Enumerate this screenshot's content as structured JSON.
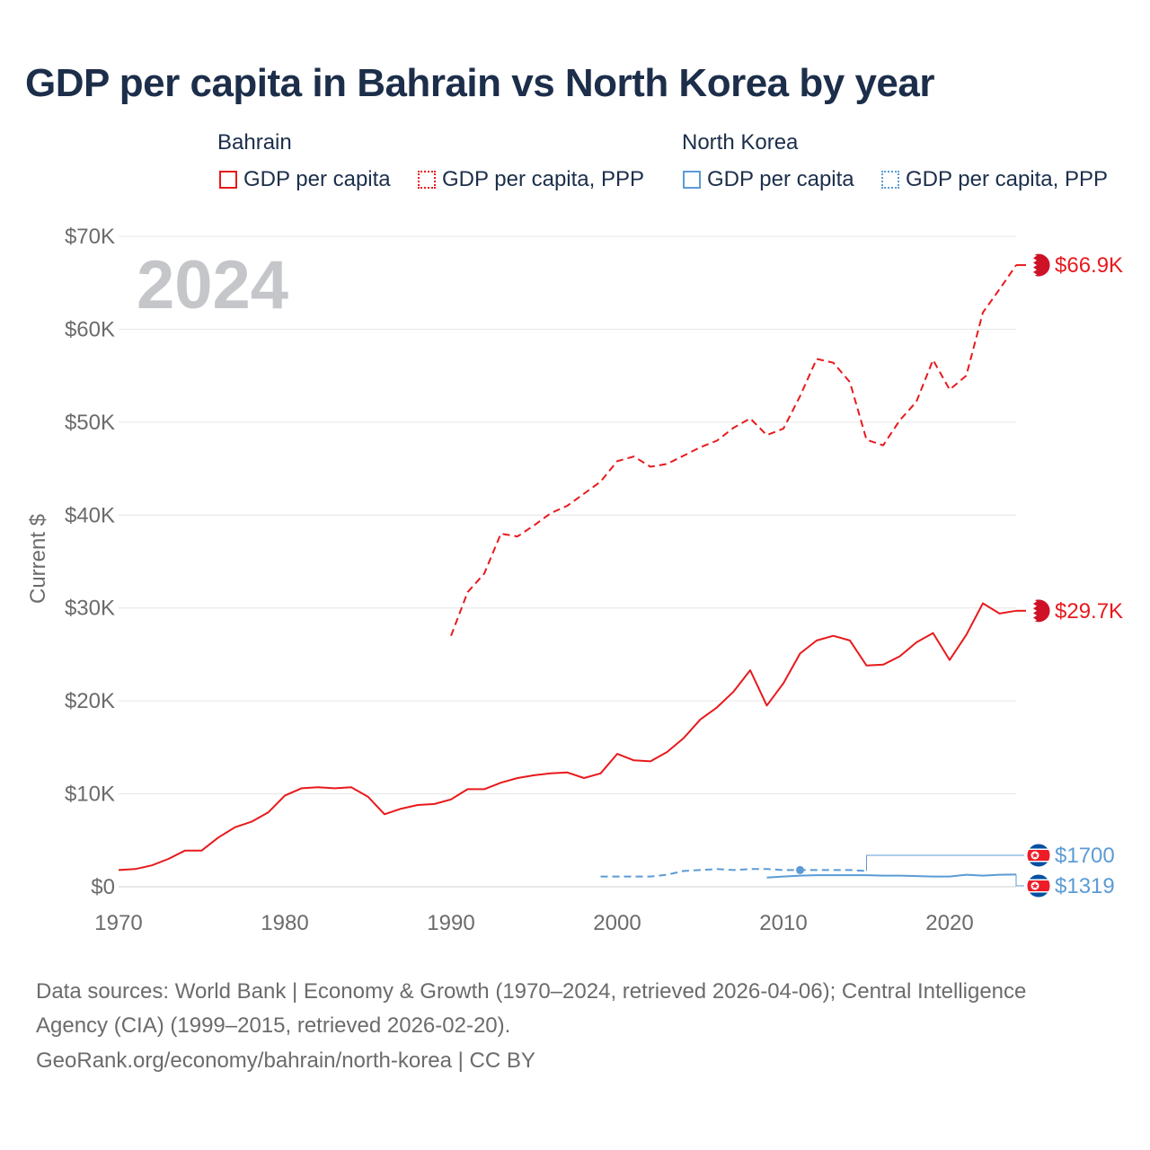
{
  "title": "GDP per capita in Bahrain vs North Korea by year",
  "legend": {
    "groups": [
      {
        "name": "Bahrain",
        "items": [
          "GDP per capita",
          "GDP per capita, PPP"
        ],
        "color": "#e8191c"
      },
      {
        "name": "North Korea",
        "items": [
          "GDP per capita",
          "GDP per capita, PPP"
        ],
        "color": "#5b9bd5"
      }
    ]
  },
  "footer": {
    "sources_line1": "Data sources: World Bank | Economy & Growth (1970–2024, retrieved 2026-04-06); Central Intelligence",
    "sources_line2": "Agency (CIA) (1999–2015, retrieved 2026-02-20).",
    "credit": "GeoRank.org/economy/bahrain/north-korea | CC BY"
  },
  "chart_data": {
    "type": "line",
    "year_watermark": "2024",
    "ylabel": "Current $",
    "xlim": [
      1970,
      2024
    ],
    "ylim": [
      0,
      70000
    ],
    "x_ticks": [
      1970,
      1980,
      1990,
      2000,
      2010,
      2020
    ],
    "y_ticks": [
      0,
      10000,
      20000,
      30000,
      40000,
      50000,
      60000,
      70000
    ],
    "y_tick_labels": [
      "$0",
      "$10K",
      "$20K",
      "$30K",
      "$40K",
      "$50K",
      "$60K",
      "$70K"
    ],
    "grid": true,
    "series": [
      {
        "name": "Bahrain GDP per capita",
        "color": "#e8191c",
        "dash": false,
        "end_label": "$29.7K",
        "x": [
          1970,
          1971,
          1972,
          1973,
          1974,
          1975,
          1976,
          1977,
          1978,
          1979,
          1980,
          1981,
          1982,
          1983,
          1984,
          1985,
          1986,
          1987,
          1988,
          1989,
          1990,
          1991,
          1992,
          1993,
          1994,
          1995,
          1996,
          1997,
          1998,
          1999,
          2000,
          2001,
          2002,
          2003,
          2004,
          2005,
          2006,
          2007,
          2008,
          2009,
          2010,
          2011,
          2012,
          2013,
          2014,
          2015,
          2016,
          2017,
          2018,
          2019,
          2020,
          2021,
          2022,
          2023,
          2024
        ],
        "values": [
          1800,
          1900,
          2300,
          3000,
          3900,
          3900,
          5300,
          6400,
          7000,
          8000,
          9800,
          10600,
          10700,
          10600,
          10700,
          9700,
          7800,
          8400,
          8800,
          8900,
          9400,
          10500,
          10500,
          11200,
          11700,
          12000,
          12200,
          12300,
          11700,
          12200,
          14300,
          13600,
          13500,
          14500,
          16000,
          18000,
          19300,
          21000,
          23300,
          19500,
          21900,
          25100,
          26500,
          27000,
          26500,
          23800,
          23900,
          24800,
          26300,
          27300,
          24400,
          27100,
          30500,
          29400,
          29700
        ]
      },
      {
        "name": "Bahrain GDP per capita, PPP",
        "color": "#e8191c",
        "dash": true,
        "end_label": "$66.9K",
        "x": [
          1990,
          1991,
          1992,
          1993,
          1994,
          1995,
          1996,
          1997,
          1998,
          1999,
          2000,
          2001,
          2002,
          2003,
          2004,
          2005,
          2006,
          2007,
          2008,
          2009,
          2010,
          2011,
          2012,
          2013,
          2014,
          2015,
          2016,
          2017,
          2018,
          2019,
          2020,
          2021,
          2022,
          2023,
          2024
        ],
        "values": [
          27000,
          31700,
          33700,
          38000,
          37700,
          38900,
          40200,
          41000,
          42300,
          43600,
          45800,
          46300,
          45200,
          45500,
          46400,
          47300,
          48000,
          49400,
          50400,
          48600,
          49300,
          52800,
          56800,
          56400,
          54300,
          48100,
          47500,
          50200,
          52200,
          56700,
          53500,
          55000,
          61800,
          64300,
          66900
        ]
      },
      {
        "name": "North Korea GDP per capita",
        "color": "#5b9bd5",
        "dash": false,
        "end_label": "$1319",
        "x": [
          2009,
          2010,
          2011,
          2012,
          2013,
          2014,
          2015,
          2016,
          2017,
          2018,
          2019,
          2020,
          2021,
          2022,
          2023,
          2024
        ],
        "values": [
          1000,
          1100,
          1200,
          1250,
          1250,
          1250,
          1250,
          1200,
          1200,
          1150,
          1100,
          1100,
          1300,
          1200,
          1300,
          1319
        ]
      },
      {
        "name": "North Korea GDP per capita, PPP",
        "color": "#5b9bd5",
        "dash": true,
        "end_label": "$1700",
        "x": [
          1999,
          2000,
          2001,
          2002,
          2003,
          2004,
          2005,
          2006,
          2007,
          2008,
          2009,
          2010,
          2011,
          2012,
          2013,
          2014,
          2015
        ],
        "values": [
          1100,
          1100,
          1100,
          1100,
          1300,
          1700,
          1800,
          1900,
          1800,
          1900,
          1900,
          1800,
          1800,
          1800,
          1800,
          1800,
          1700
        ]
      }
    ]
  }
}
